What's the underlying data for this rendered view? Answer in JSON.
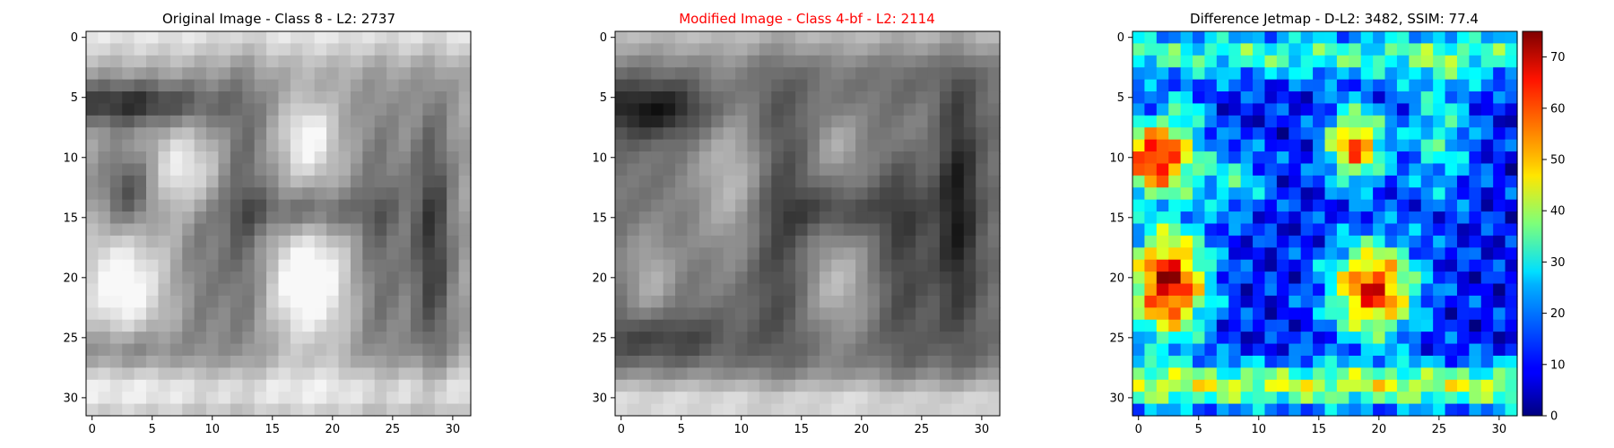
{
  "chart_data": [
    {
      "type": "heatmap",
      "title": "Original Image - Class 8 - L2: 2737",
      "title_color": "#000000",
      "colormap": "gray",
      "grid_size": [
        32,
        32
      ],
      "xticks": [
        0,
        5,
        10,
        15,
        20,
        25,
        30
      ],
      "yticks": [
        0,
        5,
        10,
        15,
        20,
        25,
        30
      ],
      "value_range": [
        0,
        255
      ],
      "grid": false,
      "colorbar": false
    },
    {
      "type": "heatmap",
      "title": "Modified Image - Class 4-bf - L2: 2114",
      "title_color": "#ff0000",
      "colormap": "gray",
      "grid_size": [
        32,
        32
      ],
      "xticks": [
        0,
        5,
        10,
        15,
        20,
        25,
        30
      ],
      "yticks": [
        0,
        5,
        10,
        15,
        20,
        25,
        30
      ],
      "value_range": [
        0,
        255
      ],
      "grid": false,
      "colorbar": false
    },
    {
      "type": "heatmap",
      "title": "Difference Jetmap - D-L2: 3482, SSIM: 77.4",
      "title_color": "#000000",
      "colormap": "jet",
      "grid_size": [
        32,
        32
      ],
      "xticks": [
        0,
        5,
        10,
        15,
        20,
        25,
        30
      ],
      "yticks": [
        0,
        5,
        10,
        15,
        20,
        25,
        30
      ],
      "value_range": [
        0,
        75
      ],
      "grid": false,
      "colorbar": true,
      "colorbar_ticks": [
        0,
        10,
        20,
        30,
        40,
        50,
        60,
        70
      ]
    }
  ]
}
